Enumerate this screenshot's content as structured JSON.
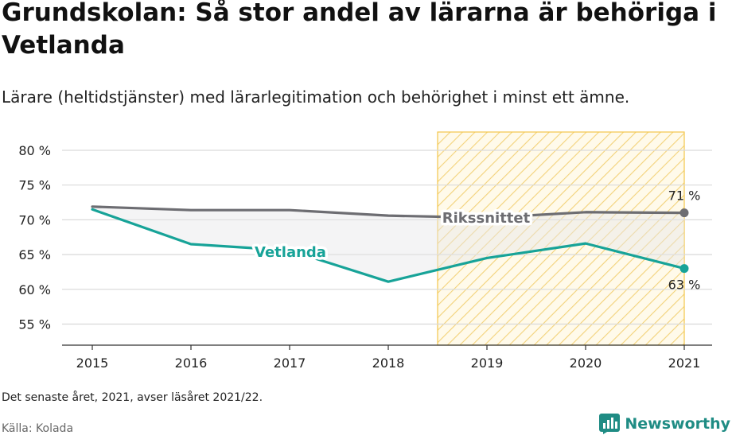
{
  "header": {
    "title": "Grundskolan: Så stor andel av lärarna är behöriga i Vetlanda",
    "subtitle": "Lärare (heltidstjänster) med lärarlegitimation och behörighet i minst ett ämne."
  },
  "footer": {
    "note": "Det senaste året, 2021, avser läsåret 2021/22.",
    "source": "Källa: Kolada",
    "brand": "Newsworthy"
  },
  "colors": {
    "vetlanda": "#17a398",
    "riket": "#6d6d72",
    "highlight_stroke": "#f3c64a",
    "gridline": "#d9d9d9"
  },
  "chart_data": {
    "type": "line",
    "x": [
      2015,
      2016,
      2017,
      2018,
      2019,
      2020,
      2021
    ],
    "ylim": [
      52,
      83
    ],
    "yticks": [
      55,
      60,
      65,
      70,
      75,
      80
    ],
    "ytick_labels": [
      "55 %",
      "60 %",
      "65 %",
      "70 %",
      "75 %",
      "80 %"
    ],
    "xtick_labels": [
      "2015",
      "2016",
      "2017",
      "2018",
      "2019",
      "2020",
      "2021"
    ],
    "grid": true,
    "highlight_range": [
      2018.5,
      2021
    ],
    "series": [
      {
        "name": "Rikssnittet",
        "values": [
          71.9,
          71.4,
          71.4,
          70.6,
          70.3,
          71.1,
          71.0
        ],
        "end_label": "71 %"
      },
      {
        "name": "Vetlanda",
        "values": [
          71.5,
          66.5,
          65.6,
          61.1,
          64.5,
          66.6,
          63.0
        ],
        "end_label": "63 %"
      }
    ]
  }
}
